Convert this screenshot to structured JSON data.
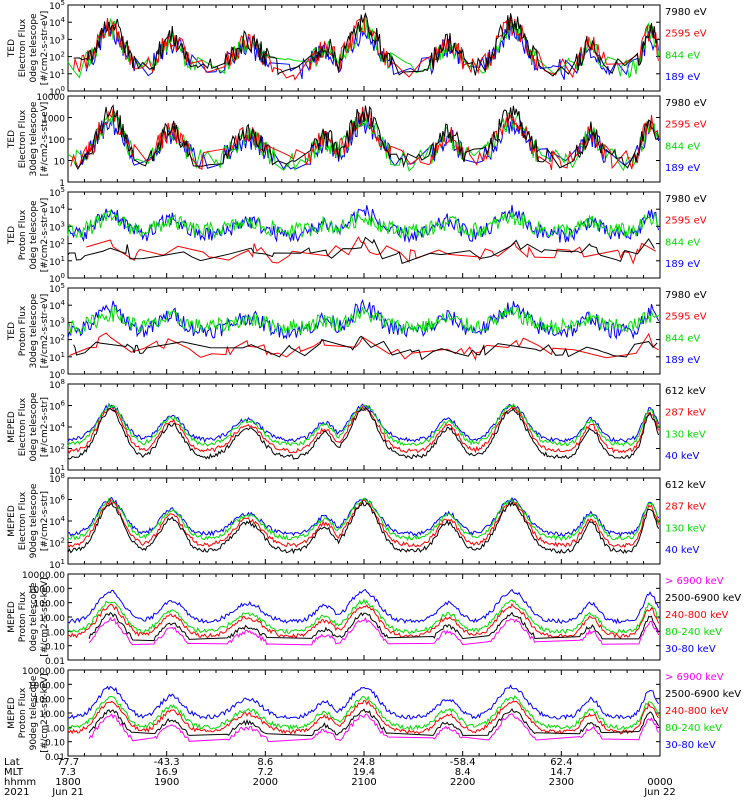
{
  "chart_data": [
    {
      "type": "line",
      "ylabel_lines": [
        "TED",
        "Electron Flux",
        "0deg telescope",
        "[#/cm2-s-str-eV]"
      ],
      "yscale": "log",
      "ylim": [
        1,
        100000
      ],
      "ytick_labels": [
        "10^0",
        "10^1",
        "10^2",
        "10^3",
        "10^4",
        "10^5"
      ],
      "series": [
        {
          "name": "7980 eV",
          "color": "#000000"
        },
        {
          "name": "2595 eV",
          "color": "#ff0000"
        },
        {
          "name": "844 eV",
          "color": "#00dd00"
        },
        {
          "name": "189 eV",
          "color": "#0000ff"
        }
      ]
    },
    {
      "type": "line",
      "ylabel_lines": [
        "TED",
        "Electron Flux",
        "30deg telescope",
        "[#/cm2-s-str-eV]"
      ],
      "yscale": "log",
      "ylim": [
        1,
        10000
      ],
      "ytick_labels": [
        "1",
        "10",
        "100",
        "1000",
        "10000"
      ],
      "series": [
        {
          "name": "7980 eV",
          "color": "#000000"
        },
        {
          "name": "2595 eV",
          "color": "#ff0000"
        },
        {
          "name": "844 eV",
          "color": "#00dd00"
        },
        {
          "name": "189 eV",
          "color": "#0000ff"
        }
      ]
    },
    {
      "type": "line",
      "ylabel_lines": [
        "TED",
        "Proton Flux",
        "0deg telescope",
        "[#/cm2-s-str-eV]"
      ],
      "yscale": "log",
      "ylim": [
        1,
        100000
      ],
      "ytick_labels": [
        "10^0",
        "10^1",
        "10^2",
        "10^3",
        "10^4",
        "10^5"
      ],
      "series": [
        {
          "name": "7980 eV",
          "color": "#000000"
        },
        {
          "name": "2595 eV",
          "color": "#ff0000"
        },
        {
          "name": "844 eV",
          "color": "#00dd00"
        },
        {
          "name": "189 eV",
          "color": "#0000ff"
        }
      ]
    },
    {
      "type": "line",
      "ylabel_lines": [
        "TED",
        "Proton Flux",
        "30deg telescope",
        "[#/cm2-s-str-eV]"
      ],
      "yscale": "log",
      "ylim": [
        1,
        100000
      ],
      "ytick_labels": [
        "10^0",
        "10^1",
        "10^2",
        "10^3",
        "10^4",
        "10^5"
      ],
      "series": [
        {
          "name": "7980 eV",
          "color": "#000000"
        },
        {
          "name": "2595 eV",
          "color": "#ff0000"
        },
        {
          "name": "844 eV",
          "color": "#00dd00"
        },
        {
          "name": "189 eV",
          "color": "#0000ff"
        }
      ]
    },
    {
      "type": "line",
      "ylabel_lines": [
        "MEPED",
        "Electron Flux",
        "0deg telescope",
        "[#/cm2-s-str]"
      ],
      "yscale": "log",
      "ylim": [
        10,
        100000000
      ],
      "ytick_labels": [
        "10^1",
        "10^2",
        "10^4",
        "10^6",
        "10^8"
      ],
      "series": [
        {
          "name": "612 keV",
          "color": "#000000"
        },
        {
          "name": "287 keV",
          "color": "#ff0000"
        },
        {
          "name": "130 keV",
          "color": "#00dd00"
        },
        {
          "name": "40 keV",
          "color": "#0000ff"
        }
      ]
    },
    {
      "type": "line",
      "ylabel_lines": [
        "MEPED",
        "Electron Flux",
        "90deg telescope",
        "[#/cm2-s-str]"
      ],
      "yscale": "log",
      "ylim": [
        10,
        100000000
      ],
      "ytick_labels": [
        "10^1",
        "10^2",
        "10^4",
        "10^6",
        "10^8"
      ],
      "series": [
        {
          "name": "612 keV",
          "color": "#000000"
        },
        {
          "name": "287 keV",
          "color": "#ff0000"
        },
        {
          "name": "130 keV",
          "color": "#00dd00"
        },
        {
          "name": "40 keV",
          "color": "#0000ff"
        }
      ]
    },
    {
      "type": "line",
      "ylabel_lines": [
        "MEPED",
        "Proton Flux",
        "0deg telescope",
        "[#/cm2-s-str-keV]"
      ],
      "yscale": "log",
      "ylim": [
        0.01,
        10000
      ],
      "ytick_labels": [
        "0.01",
        "0.10",
        "1.00",
        "10.00",
        "100.00",
        "1000.00",
        "10000.00"
      ],
      "series": [
        {
          "name": "> 6900 keV",
          "color": "#ff00ff"
        },
        {
          "name": "2500-6900 keV",
          "color": "#000000"
        },
        {
          "name": "240-800 keV",
          "color": "#ff0000"
        },
        {
          "name": "80-240 keV",
          "color": "#00dd00"
        },
        {
          "name": "30-80 keV",
          "color": "#0000ff"
        }
      ]
    },
    {
      "type": "line",
      "ylabel_lines": [
        "MEPED",
        "Proton Flux",
        "90deg telescope",
        "[#/cm2-s-str-keV]"
      ],
      "yscale": "log",
      "ylim": [
        0.01,
        10000
      ],
      "ytick_labels": [
        "0.01",
        "0.10",
        "1.00",
        "10.00",
        "100.00",
        "1000.00",
        "10000.00"
      ],
      "series": [
        {
          "name": "> 6900 keV",
          "color": "#ff00ff"
        },
        {
          "name": "2500-6900 keV",
          "color": "#000000"
        },
        {
          "name": "240-800 keV",
          "color": "#ff0000"
        },
        {
          "name": "80-240 keV",
          "color": "#00dd00"
        },
        {
          "name": "30-80 keV",
          "color": "#0000ff"
        }
      ]
    }
  ],
  "time_axis": {
    "start": "2021-06-21 18:00",
    "end": "2021-06-22 00:00",
    "row_labels": [
      "Lat",
      "MLT",
      "hhmm",
      "2021"
    ],
    "ticks": [
      {
        "hour": 0,
        "lat": "77.7",
        "mlt": "7.3",
        "hhmm": "1800",
        "date": "Jun 21"
      },
      {
        "hour": 1,
        "lat": "-43.3",
        "mlt": "16.9",
        "hhmm": "1900",
        "date": ""
      },
      {
        "hour": 2,
        "lat": "8.6",
        "mlt": "7.2",
        "hhmm": "2000",
        "date": ""
      },
      {
        "hour": 3,
        "lat": "24.8",
        "mlt": "19.4",
        "hhmm": "2100",
        "date": ""
      },
      {
        "hour": 4,
        "lat": "-58.4",
        "mlt": "8.4",
        "hhmm": "2200",
        "date": ""
      },
      {
        "hour": 5,
        "lat": "62.4",
        "mlt": "14.7",
        "hhmm": "2300",
        "date": ""
      },
      {
        "hour": 6,
        "lat": "",
        "mlt": "",
        "hhmm": "0000",
        "date": "Jun 22"
      }
    ]
  }
}
